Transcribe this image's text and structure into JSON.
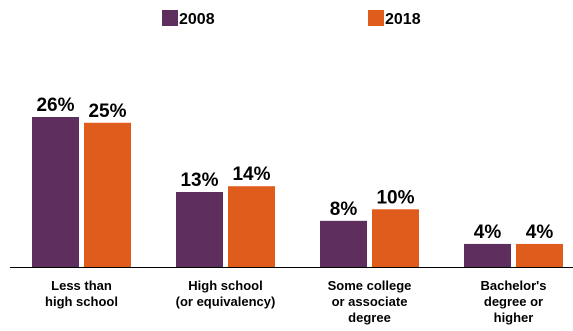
{
  "chart_data": {
    "type": "bar",
    "title": "",
    "xlabel": "",
    "ylabel": "",
    "ylim": [
      0,
      26
    ],
    "grid": false,
    "legend_position": "top",
    "categories": [
      [
        "Less than",
        "high school"
      ],
      [
        "High school",
        "(or equivalency)"
      ],
      [
        "Some college",
        "or associate",
        "degree"
      ],
      [
        "Bachelor's",
        "degree or",
        "higher"
      ]
    ],
    "series": [
      {
        "name": "2008",
        "color": "#5e2e5e",
        "values": [
          26,
          13,
          8,
          4
        ],
        "labels": [
          "26%",
          "13%",
          "8%",
          "4%"
        ]
      },
      {
        "name": "2018",
        "color": "#e05c1c",
        "values": [
          25,
          14,
          10,
          4
        ],
        "labels": [
          "25%",
          "14%",
          "10%",
          "4%"
        ]
      }
    ]
  }
}
